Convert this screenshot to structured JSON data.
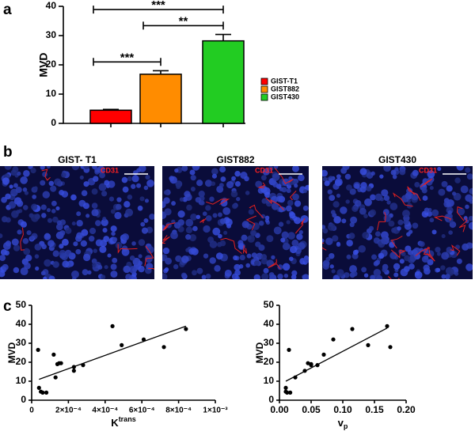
{
  "panel_labels": [
    "a",
    "b",
    "c"
  ],
  "images": [
    {
      "title": "GIST- T1",
      "label": "CD31"
    },
    {
      "title": "GIST882",
      "label": "CD31"
    },
    {
      "title": "GIST430",
      "label": "CD31"
    }
  ],
  "chart_data": [
    {
      "type": "bar",
      "ylabel": "MVD",
      "categories": [
        "GIST-T1",
        "GIST882",
        "GIST430"
      ],
      "values": [
        4.5,
        16.8,
        28.2
      ],
      "errors": [
        0.3,
        1.2,
        2.2
      ],
      "colors": [
        "#ff0000",
        "#ff8c00",
        "#22cc22"
      ],
      "ylim": [
        0,
        40
      ],
      "yticks": [
        0,
        10,
        20,
        30,
        40
      ],
      "legend": "right",
      "annotations": [
        {
          "text": "***",
          "pair": [
            0,
            2
          ]
        },
        {
          "text": "**",
          "pair": [
            1,
            2
          ]
        },
        {
          "text": "***",
          "pair": [
            0,
            1
          ]
        }
      ]
    },
    {
      "type": "scatter",
      "xlabel": {
        "base": "K",
        "sup": "trans"
      },
      "ylabel": "MVD",
      "x": [
        3.5e-05,
        4e-05,
        5e-05,
        6e-05,
        8e-05,
        0.00012,
        0.00013,
        0.00014,
        0.00015,
        0.00016,
        0.00023,
        0.00023,
        0.00028,
        0.00044,
        0.00049,
        0.00061,
        0.00072,
        0.00084
      ],
      "y": [
        26.5,
        6.5,
        4.5,
        4,
        4,
        24,
        12,
        19,
        19.5,
        19.5,
        15.5,
        17.5,
        18.5,
        39,
        29,
        32,
        28,
        37.5
      ],
      "xlim": [
        0,
        0.001
      ],
      "xticks": [
        0,
        {
          "value": 0.0002,
          "label": "2×10⁻⁴"
        },
        {
          "value": 0.0004,
          "label": "4×10⁻⁴"
        },
        {
          "value": 0.0006,
          "label": "6×10⁻⁴"
        },
        {
          "value": 0.0008,
          "label": "8×10⁻⁴"
        },
        {
          "value": 0.001,
          "label": "1×10⁻³"
        }
      ],
      "ylim": [
        0,
        50
      ],
      "yticks": [
        0,
        10,
        20,
        30,
        40,
        50
      ],
      "fit": {
        "x": [
          4e-05,
          0.00084
        ],
        "y": [
          11,
          39
        ]
      }
    },
    {
      "type": "scatter",
      "xlabel": {
        "base": "v",
        "sub": "p"
      },
      "ylabel": "MVD",
      "x": [
        0.01,
        0.01,
        0.012,
        0.015,
        0.017,
        0.025,
        0.04,
        0.045,
        0.05,
        0.05,
        0.06,
        0.07,
        0.085,
        0.115,
        0.14,
        0.17,
        0.175
      ],
      "y": [
        6.5,
        4.5,
        4,
        26.5,
        4,
        12,
        15.5,
        19.5,
        18.5,
        19,
        18.5,
        24,
        32,
        37.5,
        29,
        39,
        28
      ],
      "xlim": [
        0,
        0.2
      ],
      "xticks": [
        {
          "value": 0,
          "label": "0.00"
        },
        {
          "value": 0.05,
          "label": "0.05"
        },
        {
          "value": 0.1,
          "label": "0.10"
        },
        {
          "value": 0.15,
          "label": "0.15"
        },
        {
          "value": 0.2,
          "label": "0.20"
        }
      ],
      "ylim": [
        0,
        50
      ],
      "yticks": [
        0,
        10,
        20,
        30,
        40,
        50
      ],
      "fit": {
        "x": [
          0.01,
          0.17
        ],
        "y": [
          10,
          38
        ]
      }
    }
  ]
}
